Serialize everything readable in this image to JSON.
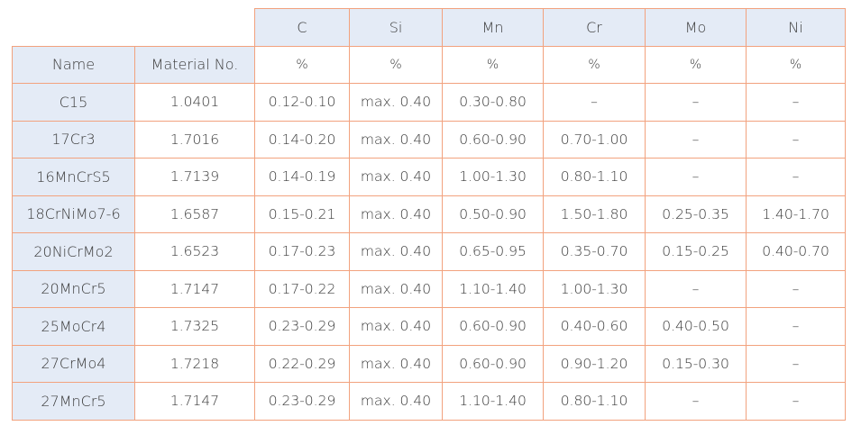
{
  "table": {
    "elements": [
      "C",
      "Si",
      "Mn",
      "Cr",
      "Mo",
      "Ni"
    ],
    "units": [
      "%",
      "%",
      "%",
      "%",
      "%",
      "%"
    ],
    "header": [
      "Name",
      "Material No."
    ],
    "rows": [
      [
        "C15",
        "1.0401",
        "0.12-0.10",
        "max. 0.40",
        "0.30-0.80",
        "–",
        "–",
        "–"
      ],
      [
        "17Cr3",
        "1.7016",
        "0.14-0.20",
        "max. 0.40",
        "0.60-0.90",
        "0.70-1.00",
        "–",
        "–"
      ],
      [
        "16MnCrS5",
        "1.7139",
        "0.14-0.19",
        "max. 0.40",
        "1.00-1.30",
        "0.80-1.10",
        "–",
        "–"
      ],
      [
        "18CrNiMo7-6",
        "1.6587",
        "0.15-0.21",
        "max. 0.40",
        "0.50-0.90",
        "1.50-1.80",
        "0.25-0.35",
        "1.40-1.70"
      ],
      [
        "20NiCrMo2",
        "1.6523",
        "0.17-0.23",
        "max. 0.40",
        "0.65-0.95",
        "0.35-0.70",
        "0.15-0.25",
        "0.40-0.70"
      ],
      [
        "20MnCr5",
        "1.7147",
        "0.17-0.22",
        "max. 0.40",
        "1.10-1.40",
        "1.00-1.30",
        "–",
        "–"
      ],
      [
        "25MoCr4",
        "1.7325",
        "0.23-0.29",
        "max. 0.40",
        "0.60-0.90",
        "0.40-0.60",
        "0.40-0.50",
        "–"
      ],
      [
        "27CrMo4",
        "1.7218",
        "0.22-0.29",
        "max. 0.40",
        "0.60-0.90",
        "0.90-1.20",
        "0.15-0.30",
        "–"
      ],
      [
        "27MnCr5",
        "1.7147",
        "0.23-0.29",
        "max. 0.40",
        "1.10-1.40",
        "0.80-1.10",
        "–",
        "–"
      ]
    ]
  }
}
